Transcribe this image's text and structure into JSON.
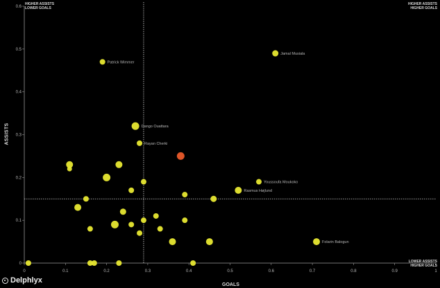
{
  "colors": {
    "background": "#000000",
    "point": "#e8e831",
    "highlight": "#ea5a2a",
    "axis": "#9a9a9a",
    "label": "#b9b9b9"
  },
  "quadrants": {
    "top_left": [
      "HIGHER ASSISTS",
      "LOWER GOALS"
    ],
    "top_right": [
      "HIGHER ASSISTS",
      "HIGHER GOALS"
    ],
    "bottom_right": [
      "LOWER ASSISTS",
      "HIGHER GOALS"
    ]
  },
  "brand": "Delphlyx",
  "chart_data": {
    "type": "scatter",
    "xlabel": "GOALS",
    "ylabel": "ASSISTS",
    "xlim": [
      0,
      1
    ],
    "ylim": [
      0,
      0.6
    ],
    "x_ticks": [
      "0",
      "0.1",
      "0.2",
      "0.3",
      "0.4",
      "0.5",
      "0.6",
      "0.7",
      "0.8",
      "0.9",
      "1"
    ],
    "y_ticks": [
      "0",
      "0.1",
      "0.2",
      "0.3",
      "0.4",
      "0.5",
      "0.6"
    ],
    "reference_lines": {
      "x": 0.29,
      "y": 0.15
    },
    "grid": false,
    "points": [
      {
        "x": 0.61,
        "y": 0.49,
        "label": "Jamal Musiala",
        "size": 7
      },
      {
        "x": 0.19,
        "y": 0.47,
        "label": "Patrick Wimmer",
        "size": 6
      },
      {
        "x": 0.27,
        "y": 0.32,
        "label": "Dango Ouattara",
        "size": 9
      },
      {
        "x": 0.28,
        "y": 0.28,
        "label": "Rayan Cherki",
        "size": 6
      },
      {
        "x": 0.38,
        "y": 0.25,
        "highlight": true,
        "size": 9
      },
      {
        "x": 0.57,
        "y": 0.19,
        "label": "Youssoufa Moukoko",
        "size": 6
      },
      {
        "x": 0.52,
        "y": 0.17,
        "label": "Rasmus Højlund",
        "size": 8
      },
      {
        "x": 0.71,
        "y": 0.05,
        "label": "Folarin Balogun",
        "size": 8
      },
      {
        "x": 0.11,
        "y": 0.23,
        "size": 8
      },
      {
        "x": 0.11,
        "y": 0.22,
        "size": 5
      },
      {
        "x": 0.23,
        "y": 0.23,
        "size": 8
      },
      {
        "x": 0.2,
        "y": 0.2,
        "size": 9
      },
      {
        "x": 0.29,
        "y": 0.19,
        "size": 6
      },
      {
        "x": 0.26,
        "y": 0.17,
        "size": 6
      },
      {
        "x": 0.39,
        "y": 0.16,
        "size": 6
      },
      {
        "x": 0.46,
        "y": 0.15,
        "size": 7
      },
      {
        "x": 0.15,
        "y": 0.15,
        "size": 6
      },
      {
        "x": 0.13,
        "y": 0.13,
        "size": 8
      },
      {
        "x": 0.24,
        "y": 0.12,
        "size": 7
      },
      {
        "x": 0.32,
        "y": 0.11,
        "size": 6
      },
      {
        "x": 0.29,
        "y": 0.1,
        "size": 6
      },
      {
        "x": 0.39,
        "y": 0.1,
        "size": 6
      },
      {
        "x": 0.22,
        "y": 0.09,
        "size": 9
      },
      {
        "x": 0.26,
        "y": 0.09,
        "size": 6
      },
      {
        "x": 0.16,
        "y": 0.08,
        "size": 6
      },
      {
        "x": 0.33,
        "y": 0.08,
        "size": 6
      },
      {
        "x": 0.28,
        "y": 0.07,
        "size": 6
      },
      {
        "x": 0.36,
        "y": 0.05,
        "size": 8
      },
      {
        "x": 0.45,
        "y": 0.05,
        "size": 8
      },
      {
        "x": 0.01,
        "y": 0.0,
        "size": 6
      },
      {
        "x": 0.16,
        "y": 0.0,
        "size": 6
      },
      {
        "x": 0.17,
        "y": 0.0,
        "size": 6
      },
      {
        "x": 0.23,
        "y": 0.0,
        "size": 6
      },
      {
        "x": 0.41,
        "y": 0.0,
        "size": 6
      }
    ]
  }
}
